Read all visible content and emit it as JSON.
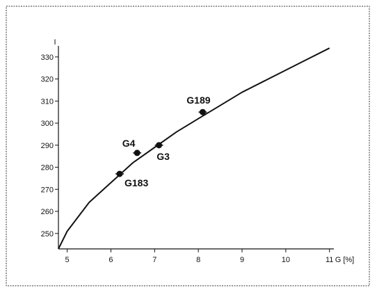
{
  "chart_data": {
    "type": "scatter",
    "title": "",
    "xlabel": "G [%]",
    "ylabel": "I",
    "xlim": [
      4.8,
      11.1
    ],
    "ylim": [
      243,
      335
    ],
    "x_ticks": [
      5,
      6,
      7,
      8,
      9,
      10,
      11
    ],
    "y_ticks": [
      250,
      260,
      270,
      280,
      290,
      300,
      310,
      320,
      330
    ],
    "grid": false,
    "legend": "none",
    "points": [
      {
        "label": "G183",
        "x": 6.2,
        "y": 277
      },
      {
        "label": "G4",
        "x": 6.6,
        "y": 286.5
      },
      {
        "label": "G3",
        "x": 7.1,
        "y": 290
      },
      {
        "label": "G189",
        "x": 8.1,
        "y": 305
      }
    ],
    "fit_curve": {
      "x": [
        4.8,
        5.0,
        5.5,
        6.0,
        6.5,
        7.0,
        7.5,
        8.0,
        8.5,
        9.0,
        9.5,
        10.0,
        10.5,
        11.0
      ],
      "y": [
        243,
        251,
        264,
        273,
        282,
        289,
        296,
        302,
        308,
        314,
        319,
        324,
        329,
        334
      ]
    }
  }
}
